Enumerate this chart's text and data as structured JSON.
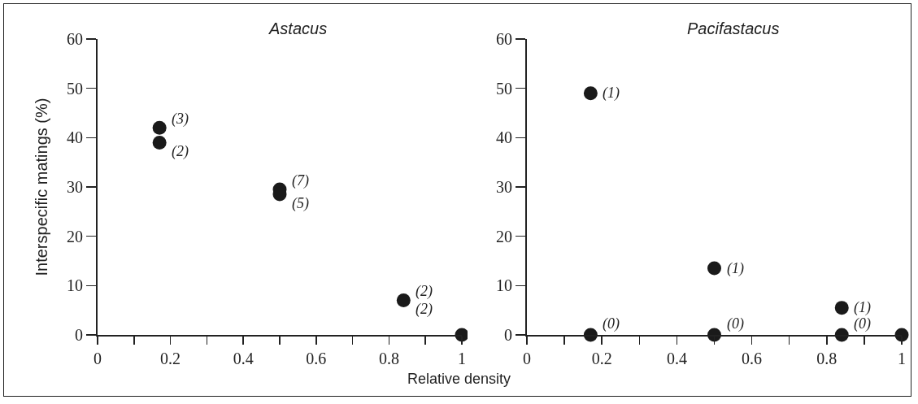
{
  "chart_data": [
    {
      "type": "scatter",
      "title": "Astacus",
      "xlabel": "Relative density",
      "ylabel": "Interspecific matings (%)",
      "series": [
        {
          "color": "#1a1a1a",
          "x": [
            0.17,
            0.17,
            0.5,
            0.5,
            0.84,
            1
          ],
          "values": [
            42,
            39,
            29.5,
            28.5,
            7,
            0
          ]
        }
      ],
      "annotations": [
        {
          "text": "(3)",
          "x": 0.17,
          "y": 42
        },
        {
          "text": "(2)",
          "x": 0.17,
          "y": 39
        },
        {
          "text": "(7)",
          "x": 0.5,
          "y": 29.5
        },
        {
          "text": "(5)",
          "x": 0.5,
          "y": 28.5
        },
        {
          "text": "(2)",
          "x": 0.84,
          "y": 7
        },
        {
          "text": "(2)",
          "x": 0.84,
          "y": 7
        }
      ],
      "xlim": [
        0,
        1
      ],
      "xticks": [
        0,
        {
          "value": 0.1,
          "label": null
        },
        0.2,
        {
          "value": 0.3,
          "label": null
        },
        0.4,
        {
          "value": 0.5,
          "label": null
        },
        0.6,
        {
          "value": 0.7,
          "label": null
        },
        0.8,
        {
          "value": 0.9,
          "label": null
        },
        1
      ],
      "ylim": [
        0,
        60
      ],
      "yticks": [
        0,
        10,
        20,
        30,
        40,
        50,
        60
      ],
      "grid": false,
      "marker": "circle"
    },
    {
      "type": "scatter",
      "title": "Pacifastacus",
      "series": [
        {
          "color": "#1a1a1a",
          "x": [
            0.17,
            0.17,
            0.5,
            0.5,
            0.84,
            0.84,
            1
          ],
          "values": [
            49,
            0,
            13.5,
            0,
            5.5,
            0,
            0
          ]
        }
      ],
      "annotations": [
        {
          "text": "(1)",
          "x": 0.17,
          "y": 49
        },
        {
          "text": "(0)",
          "x": 0.17,
          "y": 0
        },
        {
          "text": "(1)",
          "x": 0.5,
          "y": 13.5
        },
        {
          "text": "(0)",
          "x": 0.5,
          "y": 0
        },
        {
          "text": "(1)",
          "x": 0.84,
          "y": 5.5
        },
        {
          "text": "(0)",
          "x": 0.84,
          "y": 0
        }
      ],
      "xlim": [
        0,
        1
      ],
      "xticks": [
        0,
        {
          "value": 0.1,
          "label": null
        },
        0.2,
        {
          "value": 0.3,
          "label": null
        },
        0.4,
        {
          "value": 0.5,
          "label": null
        },
        0.6,
        {
          "value": 0.7,
          "label": null
        },
        0.8,
        {
          "value": 0.9,
          "label": null
        },
        1
      ],
      "ylim": [
        0,
        60
      ],
      "yticks": [
        0,
        10,
        20,
        30,
        40,
        50,
        60
      ],
      "grid": false,
      "marker": "circle"
    }
  ]
}
